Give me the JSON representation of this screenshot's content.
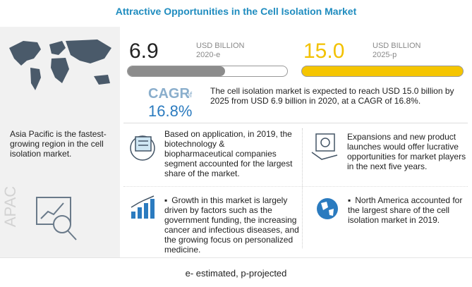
{
  "header": {
    "title": "Attractive Opportunities in the Cell Isolation Market"
  },
  "market": {
    "current": {
      "value": "6.9",
      "unit": "USD BILLION",
      "label": "2020-e"
    },
    "forecast": {
      "value": "15.0",
      "unit": "USD BILLION",
      "label": "2025-p"
    },
    "cagr": {
      "label": "CAGR",
      "of": "of",
      "value": "16.8%"
    },
    "summary": "The cell isolation market is expected to reach USD 15.0 billion by 2025 from USD 6.9 billion in 2020, at a CAGR of 16.8%."
  },
  "region": {
    "text": "Asia Pacific is the fastest-growing region in the cell isolation market.",
    "name": "APAC"
  },
  "insights": [
    "Based on application, in 2019, the biotechnology & biopharmaceutical companies segment accounted for the largest share of the market.",
    "Expansions and new product launches would offer lucrative opportunities for market players in the next five years.",
    "Growth in this market is largely driven by factors such as the government funding, the increasing cancer and infectious diseases, and the growing focus on personalized medicine.",
    "North America accounted for the largest share of the cell isolation market in 2019."
  ],
  "footer": "e- estimated, p-projected"
}
